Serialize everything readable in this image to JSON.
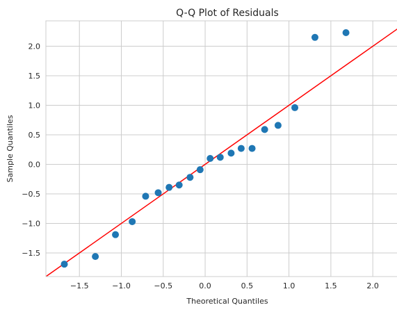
{
  "chart_data": {
    "type": "scatter",
    "title": "Q-Q Plot of Residuals",
    "xlabel": "Theoretical Quantiles",
    "ylabel": "Sample Quantiles",
    "xlim": [
      -1.9,
      2.43
    ],
    "ylim": [
      -1.9,
      2.43
    ],
    "xticks": [
      -1.5,
      -1.0,
      -0.5,
      0.0,
      0.5,
      1.0,
      1.5,
      2.0
    ],
    "yticks": [
      -1.5,
      -1.0,
      -0.5,
      0.0,
      0.5,
      1.0,
      1.5,
      2.0
    ],
    "xtick_labels": [
      "−1.5",
      "−1.0",
      "−0.5",
      "0.0",
      "0.5",
      "1.0",
      "1.5",
      "2.0"
    ],
    "ytick_labels": [
      "−1.5",
      "−1.0",
      "−0.5",
      "0.0",
      "0.5",
      "1.0",
      "1.5",
      "2.0"
    ],
    "grid": true,
    "point_color": "#1f77b4",
    "line_color": "#ff0000",
    "reference_line": "45-degree (y = x)",
    "points": [
      {
        "x": -1.68,
        "y": -1.69
      },
      {
        "x": -1.31,
        "y": -1.56
      },
      {
        "x": -1.07,
        "y": -1.19
      },
      {
        "x": -0.87,
        "y": -0.97
      },
      {
        "x": -0.71,
        "y": -0.54
      },
      {
        "x": -0.56,
        "y": -0.48
      },
      {
        "x": -0.43,
        "y": -0.39
      },
      {
        "x": -0.31,
        "y": -0.35
      },
      {
        "x": -0.18,
        "y": -0.22
      },
      {
        "x": -0.06,
        "y": -0.09
      },
      {
        "x": 0.06,
        "y": 0.1
      },
      {
        "x": 0.18,
        "y": 0.12
      },
      {
        "x": 0.31,
        "y": 0.19
      },
      {
        "x": 0.43,
        "y": 0.27
      },
      {
        "x": 0.56,
        "y": 0.27
      },
      {
        "x": 0.71,
        "y": 0.59
      },
      {
        "x": 0.87,
        "y": 0.66
      },
      {
        "x": 1.07,
        "y": 0.96
      },
      {
        "x": 1.31,
        "y": 2.15
      },
      {
        "x": 1.68,
        "y": 2.23
      }
    ]
  }
}
